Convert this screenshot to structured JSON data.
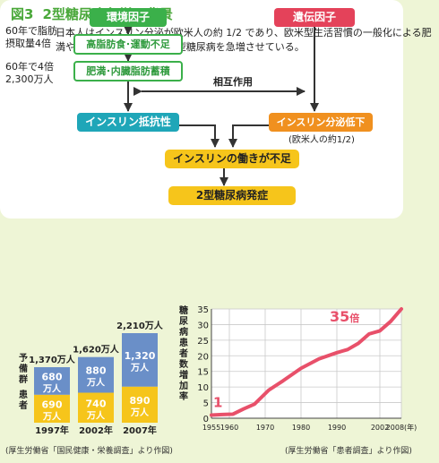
{
  "figure": {
    "number": "図3",
    "title": "2型糖尿病急増の背景"
  },
  "description": "日本人はインスリン分泌が欧米人の約 1/2 であり、欧米型生活習慣の一般化による肥満やインスリン抵抗性が 2 型糖尿病を急増させている。",
  "flow": {
    "env_factor": "環境因子",
    "genetic_factor": "遺伝因子",
    "high_fat": "高脂肪食･運動不足",
    "obesity": "肥満･内臓脂肪蓄積",
    "interaction": "相互作用",
    "resistance": "インスリン抵抗性",
    "secretion_low": "インスリン分泌低下",
    "secretion_note": "(欧米人の約1/2)",
    "insulin_insufficient": "インスリンの働きが不足",
    "onset": "2型糖尿病発症",
    "note_fat_1": "60年で脂肪",
    "note_fat_2": "摂取量4倍",
    "note_obese_1": "60年で4倍",
    "note_obese_2": "2,300万人"
  },
  "colors": {
    "green": "#3bb04a",
    "teal": "#1fa6b8",
    "red": "#e4425a",
    "orange": "#f0901f",
    "yellow": "#f6c51b",
    "blue": "#6a8fc8",
    "line": "#e8506a"
  },
  "chart_data": [
    {
      "type": "bar",
      "stacked": true,
      "categories": [
        "1997年",
        "2002年",
        "2007年"
      ],
      "series": [
        {
          "name": "患者",
          "values": [
            690,
            740,
            890
          ],
          "labels": [
            "690万人",
            "740万人",
            "890万人"
          ]
        },
        {
          "name": "予備群",
          "values": [
            680,
            880,
            1320
          ],
          "labels": [
            "680万人",
            "880万人",
            "1,320万人"
          ]
        }
      ],
      "totals": [
        "1,370万人",
        "1,620万人",
        "2,210万人"
      ],
      "source": "(厚生労働省「国民健康・栄養調査」より作図)"
    },
    {
      "type": "line",
      "ylabel": "糖尿病患者数増加率",
      "x": [
        1955,
        1958,
        1961,
        1964,
        1967,
        1971,
        1975,
        1980,
        1985,
        1990,
        1993,
        1996,
        1999,
        2002,
        2005,
        2008
      ],
      "y": [
        1,
        1.2,
        1.3,
        3,
        4.5,
        9,
        12,
        16,
        19,
        21,
        22,
        24,
        27,
        28,
        31,
        35
      ],
      "xticks": [
        "1955",
        "1960",
        "1970",
        "1980",
        "1990",
        "2002",
        "2008(年)"
      ],
      "xtick_values": [
        1955,
        1960,
        1970,
        1980,
        1990,
        2002,
        2008
      ],
      "yticks": [
        0,
        5,
        10,
        15,
        20,
        25,
        30,
        35
      ],
      "ylim": [
        0,
        35
      ],
      "xlim": [
        1955,
        2008
      ],
      "annotation_start": "1",
      "annotation_end_value": "35",
      "annotation_end_unit": "倍",
      "source": "(厚生労働省「患者調査」より作図)"
    }
  ]
}
